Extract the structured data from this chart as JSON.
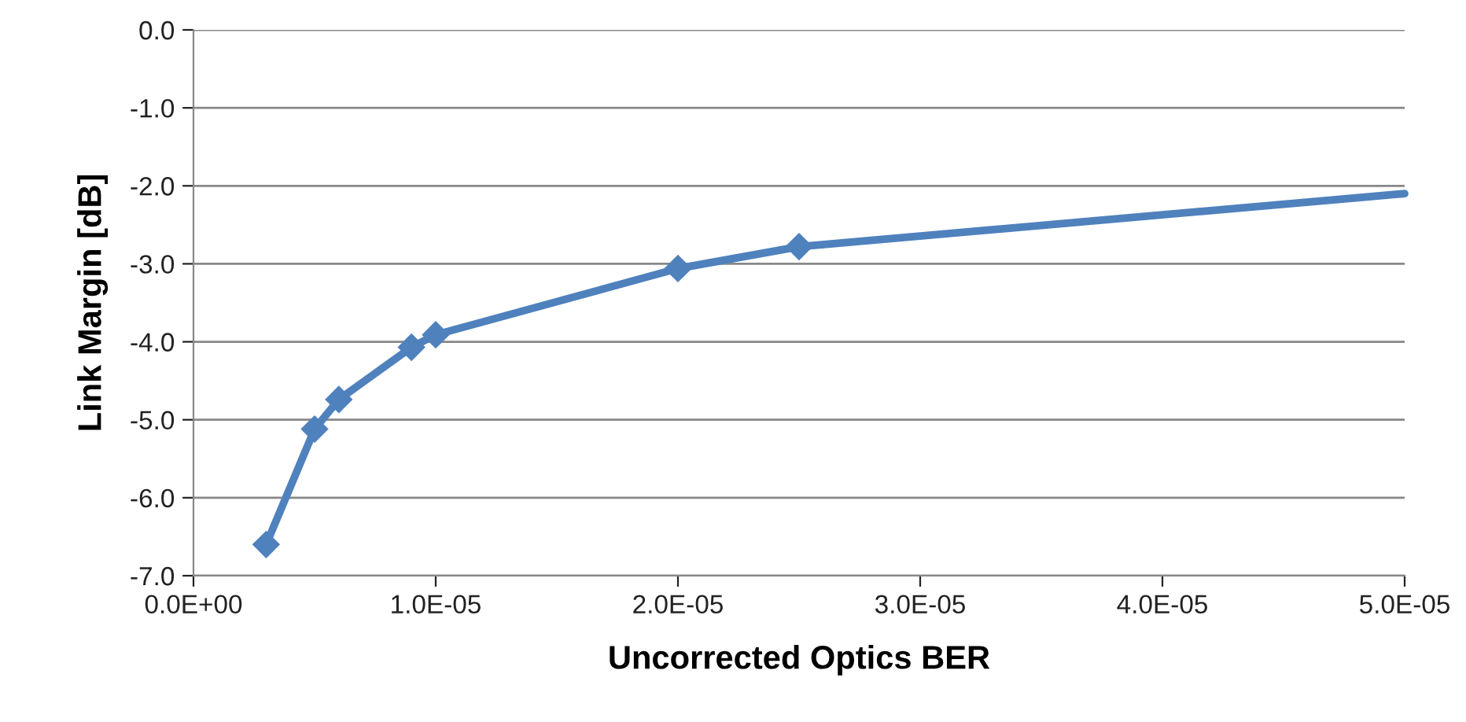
{
  "chart_data": {
    "type": "line",
    "xlabel": "Uncorrected Optics BER",
    "ylabel": "Link Margin [dB]",
    "series": [
      {
        "color": "#4f81bd",
        "marker": "diamond",
        "x": [
          3e-06,
          5e-06,
          6e-06,
          9e-06,
          1e-05,
          2e-05,
          2.5e-05
        ],
        "values": [
          -6.6,
          -5.12,
          -4.74,
          -4.07,
          -3.91,
          -3.06,
          -2.78
        ]
      },
      {
        "color": "#4f81bd",
        "marker": "none",
        "x": [
          2.5e-05,
          5e-05
        ],
        "values": [
          -2.78,
          -2.1
        ]
      }
    ],
    "xlim": [
      0,
      5e-05
    ],
    "xticks": [
      {
        "value": 0,
        "label": "0.0E+00"
      },
      {
        "value": 1e-05,
        "label": "1.0E-05"
      },
      {
        "value": 2e-05,
        "label": "2.0E-05"
      },
      {
        "value": 3e-05,
        "label": "3.0E-05"
      },
      {
        "value": 4e-05,
        "label": "4.0E-05"
      },
      {
        "value": 5e-05,
        "label": "5.0E-05"
      }
    ],
    "ylim": [
      -7,
      0
    ],
    "yticks": [
      {
        "value": 0,
        "label": "0.0"
      },
      {
        "value": -1,
        "label": "-1.0"
      },
      {
        "value": -2,
        "label": "-2.0"
      },
      {
        "value": -3,
        "label": "-3.0"
      },
      {
        "value": -4,
        "label": "-4.0"
      },
      {
        "value": -5,
        "label": "-5.0"
      },
      {
        "value": -6,
        "label": "-6.0"
      },
      {
        "value": -7,
        "label": "-7.0"
      }
    ],
    "grid": "y"
  }
}
